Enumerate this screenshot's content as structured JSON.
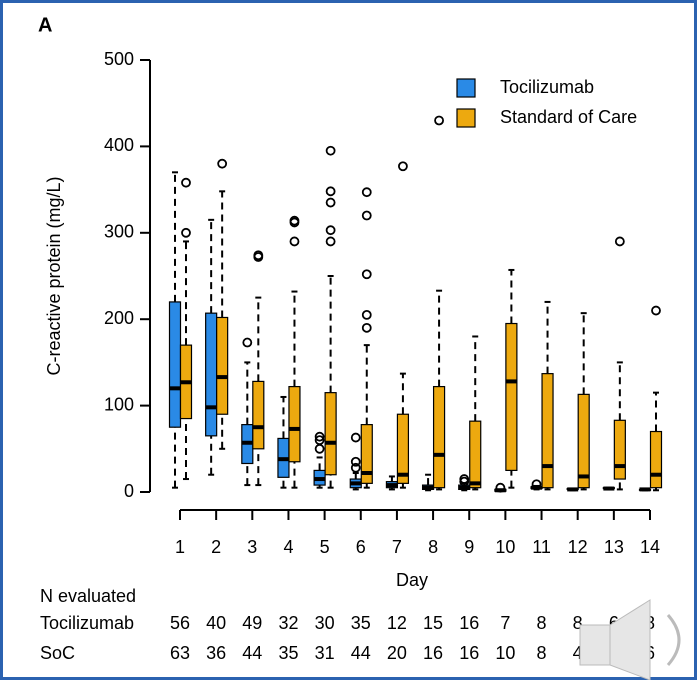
{
  "chart_data": {
    "type": "box",
    "panel_label": "A",
    "ylabel": "C-reactive protein (mg/L)",
    "xlabel": "Day",
    "categories": [
      "1",
      "2",
      "3",
      "4",
      "5",
      "6",
      "7",
      "8",
      "9",
      "10",
      "11",
      "12",
      "13",
      "14"
    ],
    "ylim": [
      0,
      500
    ],
    "yticks": [
      0,
      100,
      200,
      300,
      400,
      500
    ],
    "legend": "top-right",
    "series": [
      {
        "name": "Tocilizumab",
        "color": "#2a8ae6",
        "boxes": [
          {
            "low": 5,
            "q1": 75,
            "median": 120,
            "q3": 220,
            "high": 370,
            "outliers": []
          },
          {
            "low": 20,
            "q1": 65,
            "median": 98,
            "q3": 207,
            "high": 315,
            "outliers": []
          },
          {
            "low": 8,
            "q1": 33,
            "median": 57,
            "q3": 78,
            "high": 150,
            "outliers": [
              173
            ]
          },
          {
            "low": 5,
            "q1": 17,
            "median": 38,
            "q3": 62,
            "high": 110,
            "outliers": []
          },
          {
            "low": 5,
            "q1": 8,
            "median": 15,
            "q3": 25,
            "high": 40,
            "outliers": [
              50,
              60,
              64
            ]
          },
          {
            "low": 3,
            "q1": 5,
            "median": 10,
            "q3": 15,
            "high": 22,
            "outliers": [
              28,
              35,
              63
            ]
          },
          {
            "low": 3,
            "q1": 5,
            "median": 8,
            "q3": 12,
            "high": 18,
            "outliers": []
          },
          {
            "low": 2,
            "q1": 3,
            "median": 5,
            "q3": 8,
            "high": 20,
            "outliers": []
          },
          {
            "low": 2,
            "q1": 3,
            "median": 5,
            "q3": 8,
            "high": 10,
            "outliers": [
              12,
              15
            ]
          },
          {
            "low": 1,
            "q1": 1,
            "median": 2,
            "q3": 3,
            "high": 3,
            "outliers": [
              5
            ]
          },
          {
            "low": 3,
            "q1": 4,
            "median": 5,
            "q3": 6,
            "high": 7,
            "outliers": [
              9
            ]
          },
          {
            "low": 2,
            "q1": 3,
            "median": 3,
            "q3": 4,
            "high": 4,
            "outliers": []
          },
          {
            "low": 3,
            "q1": 4,
            "median": 4,
            "q3": 5,
            "high": 5,
            "outliers": []
          },
          {
            "low": 2,
            "q1": 2,
            "median": 3,
            "q3": 3,
            "high": 3,
            "outliers": []
          }
        ]
      },
      {
        "name": "Standard of Care",
        "color": "#eda90f",
        "boxes": [
          {
            "low": 15,
            "q1": 85,
            "median": 127,
            "q3": 170,
            "high": 290,
            "outliers": [
              300,
              358
            ]
          },
          {
            "low": 50,
            "q1": 90,
            "median": 133,
            "q3": 202,
            "high": 348,
            "outliers": [
              380
            ]
          },
          {
            "low": 8,
            "q1": 50,
            "median": 75,
            "q3": 128,
            "high": 225,
            "outliers": [
              272,
              274
            ]
          },
          {
            "low": 5,
            "q1": 35,
            "median": 73,
            "q3": 122,
            "high": 232,
            "outliers": [
              290,
              312,
              314
            ]
          },
          {
            "low": 5,
            "q1": 20,
            "median": 57,
            "q3": 115,
            "high": 250,
            "outliers": [
              290,
              303,
              335,
              348,
              395
            ]
          },
          {
            "low": 5,
            "q1": 10,
            "median": 22,
            "q3": 78,
            "high": 170,
            "outliers": [
              190,
              205,
              252,
              320,
              347
            ]
          },
          {
            "low": 5,
            "q1": 10,
            "median": 20,
            "q3": 90,
            "high": 137,
            "outliers": [
              377
            ]
          },
          {
            "low": 3,
            "q1": 5,
            "median": 43,
            "q3": 122,
            "high": 233,
            "outliers": [
              430
            ]
          },
          {
            "low": 3,
            "q1": 5,
            "median": 10,
            "q3": 82,
            "high": 180,
            "outliers": []
          },
          {
            "low": 5,
            "q1": 25,
            "median": 128,
            "q3": 195,
            "high": 257,
            "outliers": []
          },
          {
            "low": 3,
            "q1": 5,
            "median": 30,
            "q3": 137,
            "high": 220,
            "outliers": []
          },
          {
            "low": 3,
            "q1": 5,
            "median": 18,
            "q3": 113,
            "high": 207,
            "outliers": []
          },
          {
            "low": 3,
            "q1": 15,
            "median": 30,
            "q3": 83,
            "high": 150,
            "outliers": [
              290
            ]
          },
          {
            "low": 2,
            "q1": 5,
            "median": 20,
            "q3": 70,
            "high": 115,
            "outliers": [
              210
            ]
          }
        ]
      }
    ],
    "table": {
      "title": "N evaluated",
      "rows": [
        {
          "label": "Tocilizumab",
          "values": [
            "56",
            "40",
            "49",
            "32",
            "30",
            "35",
            "12",
            "15",
            "16",
            "7",
            "8",
            "8",
            "6",
            "8"
          ]
        },
        {
          "label": "SoC",
          "values": [
            "63",
            "36",
            "44",
            "35",
            "31",
            "44",
            "20",
            "16",
            "16",
            "10",
            "8",
            "4",
            null,
            "6"
          ]
        }
      ]
    }
  }
}
